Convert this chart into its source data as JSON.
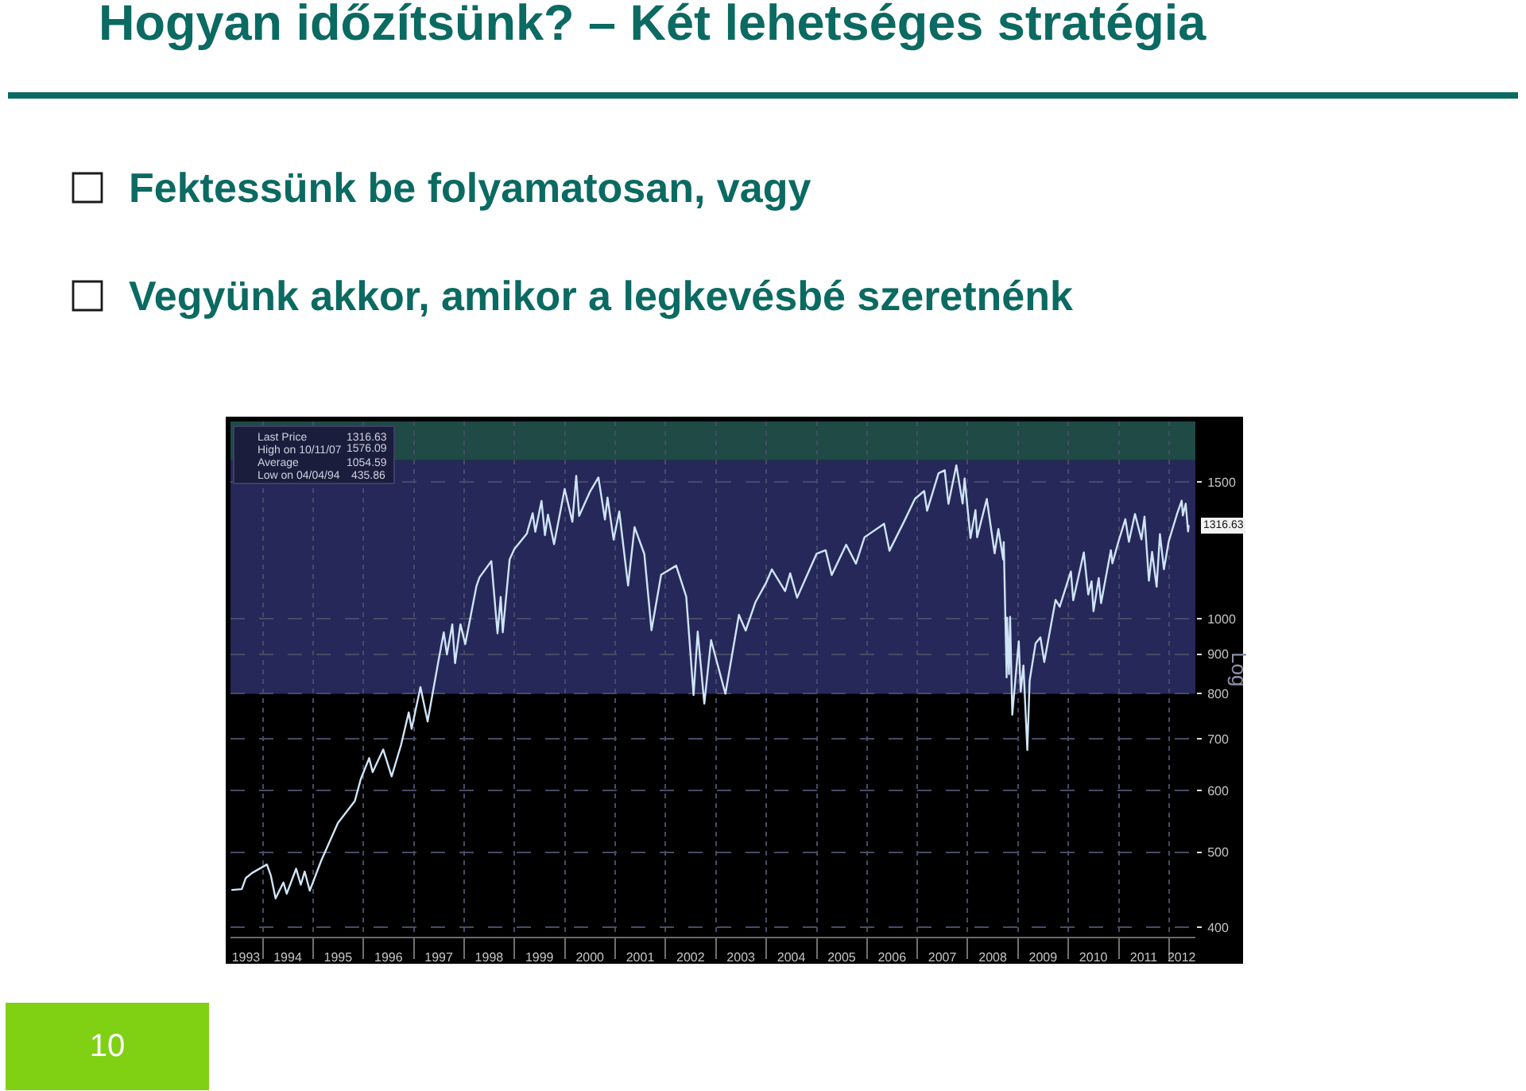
{
  "chart_data": {
    "type": "line",
    "title": "Hogyan időzítsünk? – Két lehetséges stratégia",
    "ylabel": "Log",
    "log": true,
    "grid": true,
    "line_style": "solid",
    "xlim": [
      "1993-05-12",
      "2012-07-10"
    ],
    "ylim": [
      389,
      1795
    ],
    "yticks": [
      400,
      500,
      600,
      700,
      800,
      900,
      1000,
      1500
    ],
    "xticks": [
      {
        "value": "1993-09-01",
        "label": "1993"
      },
      {
        "value": "1994-07-01",
        "label": "1994"
      },
      {
        "value": "1995-07-01",
        "label": "1995"
      },
      {
        "value": "1996-07-01",
        "label": "1996"
      },
      {
        "value": "1997-07-01",
        "label": "1997"
      },
      {
        "value": "1998-07-01",
        "label": "1998"
      },
      {
        "value": "1999-07-01",
        "label": "1999"
      },
      {
        "value": "2000-07-01",
        "label": "2000"
      },
      {
        "value": "2001-07-01",
        "label": "2001"
      },
      {
        "value": "2002-07-01",
        "label": "2002"
      },
      {
        "value": "2003-07-01",
        "label": "2003"
      },
      {
        "value": "2004-07-01",
        "label": "2004"
      },
      {
        "value": "2005-07-01",
        "label": "2005"
      },
      {
        "value": "2006-07-01",
        "label": "2006"
      },
      {
        "value": "2007-07-01",
        "label": "2007"
      },
      {
        "value": "2008-07-01",
        "label": "2008"
      },
      {
        "value": "2009-07-01",
        "label": "2009"
      },
      {
        "value": "2010-07-01",
        "label": "2010"
      },
      {
        "value": "2011-07-01",
        "label": "2011"
      },
      {
        "value": "2012-04-01",
        "label": "2012"
      },
      {
        "value": "1994-01-01",
        "label": null
      },
      {
        "value": "1995-01-01",
        "label": null
      },
      {
        "value": "1996-01-01",
        "label": null
      },
      {
        "value": "1997-01-01",
        "label": null
      },
      {
        "value": "1998-01-01",
        "label": null
      },
      {
        "value": "1999-01-01",
        "label": null
      },
      {
        "value": "2000-01-01",
        "label": null
      },
      {
        "value": "2001-01-01",
        "label": null
      },
      {
        "value": "2002-01-01",
        "label": null
      },
      {
        "value": "2003-01-01",
        "label": null
      },
      {
        "value": "2004-01-01",
        "label": null
      },
      {
        "value": "2005-01-01",
        "label": null
      },
      {
        "value": "2006-01-01",
        "label": null
      },
      {
        "value": "2007-01-01",
        "label": null
      },
      {
        "value": "2008-01-01",
        "label": null
      },
      {
        "value": "2009-01-01",
        "label": null
      },
      {
        "value": "2010-01-01",
        "label": null
      },
      {
        "value": "2011-01-01",
        "label": null
      },
      {
        "value": "2012-01-01",
        "label": null
      }
    ],
    "bands": [
      {
        "axis": "y",
        "from": 800,
        "to": 1600,
        "color": "#26285a"
      },
      {
        "axis": "y",
        "from": 1600,
        "to": 1795,
        "color": "#1f4a46"
      }
    ],
    "x": [
      "1993-05-24",
      "1993-08-02",
      "1993-08-31",
      "1993-10-15",
      "1994-01-31",
      "1994-02-28",
      "1994-04-04",
      "1994-05-31",
      "1994-06-24",
      "1994-08-31",
      "1994-10-04",
      "1994-11-01",
      "1994-12-08",
      "1995-02-28",
      "1995-06-30",
      "1995-10-31",
      "1995-12-13",
      "1996-02-12",
      "1996-03-08",
      "1996-05-24",
      "1996-07-24",
      "1996-09-30",
      "1996-11-25",
      "1996-12-16",
      "1997-02-18",
      "1997-04-11",
      "1997-06-30",
      "1997-08-06",
      "1997-08-29",
      "1997-10-07",
      "1997-10-27",
      "1997-12-05",
      "1998-01-09",
      "1998-03-31",
      "1998-04-22",
      "1998-07-17",
      "1998-08-31",
      "1998-09-23",
      "1998-10-08",
      "1998-11-27",
      "1998-12-31",
      "1999-03-31",
      "1999-05-13",
      "1999-06-01",
      "1999-07-16",
      "1999-08-10",
      "1999-09-01",
      "1999-10-15",
      "1999-12-31",
      "2000-02-25",
      "2000-03-24",
      "2000-04-14",
      "2000-06-30",
      "2000-09-01",
      "2000-10-18",
      "2000-11-06",
      "2000-12-20",
      "2001-01-30",
      "2001-04-04",
      "2001-05-21",
      "2001-07-31",
      "2001-09-21",
      "2001-11-30",
      "2002-03-19",
      "2002-05-31",
      "2002-07-23",
      "2002-08-22",
      "2002-10-09",
      "2002-11-27",
      "2003-03-11",
      "2003-06-17",
      "2003-08-05",
      "2003-10-15",
      "2003-12-31",
      "2004-02-11",
      "2004-05-17",
      "2004-06-23",
      "2004-08-12",
      "2004-12-31",
      "2005-03-07",
      "2005-04-20",
      "2005-08-03",
      "2005-10-13",
      "2005-12-14",
      "2006-05-05",
      "2006-06-13",
      "2006-09-29",
      "2006-12-15",
      "2007-02-20",
      "2007-03-13",
      "2007-06-04",
      "2007-07-19",
      "2007-08-15",
      "2007-10-11",
      "2007-11-26",
      "2007-12-10",
      "2008-01-22",
      "2008-02-27",
      "2008-03-10",
      "2008-05-19",
      "2008-07-15",
      "2008-08-11",
      "2008-09-15",
      "2008-09-19",
      "2008-10-10",
      "2008-10-13",
      "2008-10-27",
      "2008-11-04",
      "2008-11-20",
      "2009-01-06",
      "2009-01-20",
      "2009-02-09",
      "2009-03-09",
      "2009-03-26",
      "2009-05-08",
      "2009-06-12",
      "2009-07-10",
      "2009-09-30",
      "2009-10-30",
      "2010-01-19",
      "2010-02-05",
      "2010-04-23",
      "2010-05-25",
      "2010-06-18",
      "2010-07-02",
      "2010-08-09",
      "2010-08-26",
      "2010-11-05",
      "2010-11-16",
      "2010-12-31",
      "2011-02-18",
      "2011-03-16",
      "2011-04-29",
      "2011-06-15",
      "2011-07-07",
      "2011-08-08",
      "2011-08-31",
      "2011-10-03",
      "2011-10-27",
      "2011-11-25",
      "2011-12-30",
      "2012-02-29",
      "2012-04-02",
      "2012-04-10",
      "2012-05-01",
      "2012-05-18",
      "2012-05-22"
    ],
    "series": [
      {
        "color": "#cfe5f7",
        "values": [
          447,
          448,
          463,
          470,
          482,
          467,
          436,
          457,
          442,
          476,
          454,
          472,
          446,
          487,
          545,
          582,
          621,
          661,
          634,
          678,
          626,
          687,
          757,
          721,
          816,
          737,
          885,
          960,
          899,
          983,
          876,
          983,
          927,
          1101,
          1130,
          1186,
          957,
          1066,
          960,
          1192,
          1229,
          1286,
          1367,
          1294,
          1418,
          1281,
          1361,
          1247,
          1469,
          1333,
          1527,
          1356,
          1455,
          1520,
          1342,
          1432,
          1264,
          1374,
          1103,
          1312,
          1211,
          966,
          1139,
          1170,
          1067,
          797,
          962,
          777,
          938,
          800,
          1011,
          965,
          1050,
          1112,
          1157,
          1085,
          1144,
          1064,
          1212,
          1225,
          1138,
          1245,
          1177,
          1273,
          1325,
          1223,
          1336,
          1427,
          1460,
          1377,
          1539,
          1553,
          1406,
          1576,
          1407,
          1516,
          1270,
          1380,
          1273,
          1426,
          1214,
          1305,
          1192,
          1255,
          840,
          1003,
          848,
          1005,
          752,
          935,
          805,
          870,
          677,
          832,
          929,
          946,
          879,
          1057,
          1036,
          1150,
          1056,
          1217,
          1074,
          1117,
          1022,
          1128,
          1047,
          1225,
          1178,
          1258,
          1343,
          1256,
          1364,
          1265,
          1353,
          1119,
          1219,
          1099,
          1285,
          1158,
          1258,
          1366,
          1419,
          1358,
          1406,
          1295,
          1316.63
        ]
      }
    ],
    "annotations": [
      "Fektessünk be folyamatosan, vagy",
      "Vegyünk akkor, amikor a legkevésbé szeretnénk",
      "Last Price",
      "1316.63",
      "High on 10/11/07",
      "1576.09",
      "Average",
      "1054.59",
      "Low on 04/04/94",
      "435.86",
      {
        "text": "1316.63",
        "x": "2012-05-22",
        "y": 1316.63
      },
      "10"
    ]
  }
}
